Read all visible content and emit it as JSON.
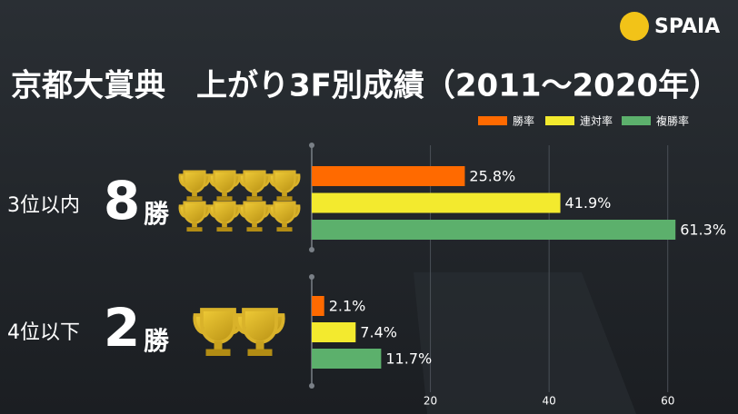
{
  "chart_data": {
    "type": "bar",
    "orientation": "horizontal",
    "title": "京都大賞典　上がり3F別成績（2011～2020年）",
    "brand": "SPAIA",
    "categories": [
      "3位以内",
      "4位以下"
    ],
    "wins": [
      8,
      2
    ],
    "wins_unit": "勝",
    "series": [
      {
        "name": "勝率",
        "color": "#ff6a00",
        "values": [
          25.8,
          2.1
        ],
        "value_labels": [
          "25.8%",
          "2.1%"
        ]
      },
      {
        "name": "連対率",
        "color": "#f3ea2e",
        "values": [
          41.9,
          7.4
        ],
        "value_labels": [
          "41.9%",
          "7.4%"
        ]
      },
      {
        "name": "複勝率",
        "color": "#5cb06c",
        "values": [
          61.3,
          11.7
        ],
        "value_labels": [
          "61.3%",
          "11.7%"
        ]
      }
    ],
    "xlim": [
      0,
      70
    ],
    "xticks": [
      20,
      40,
      60
    ],
    "grid": true,
    "legend": "top-right"
  }
}
